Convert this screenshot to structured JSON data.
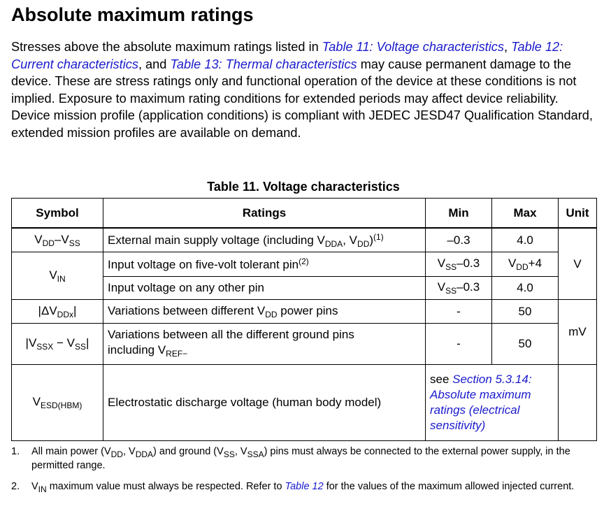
{
  "heading": "Absolute maximum ratings",
  "intro": {
    "t1": "Stresses above the absolute maximum ratings listed in ",
    "link1": "Table 11: Voltage characteristics",
    "t2": ", ",
    "link2": "Table 12: Current characteristics",
    "t3": ", and ",
    "link3": "Table 13: Thermal characteristics",
    "t4": " may cause permanent damage to the device. These are stress ratings only and functional operation of the device at these conditions is not implied. Exposure to maximum rating conditions for extended periods may affect device reliability. Device mission profile (application conditions) is compliant with JEDEC JESD47 Qualification Standard, extended mission profiles are available on demand."
  },
  "table": {
    "caption": "Table 11. Voltage characteristics",
    "headers": {
      "symbol": "Symbol",
      "ratings": "Ratings",
      "min": "Min",
      "max": "Max",
      "unit": "Unit"
    },
    "rows": [
      {
        "sym_a": "V",
        "sym_a_sub": "DD",
        "sym_sep": "–",
        "sym_b": "V",
        "sym_b_sub": "SS",
        "r1": "External main supply voltage (including V",
        "r1_sub": "DDA",
        "r2": ", V",
        "r2_sub": "DD",
        "r3": ")",
        "r3_sup": "(1)",
        "min": "–0.3",
        "max": "4.0"
      },
      {
        "sym": "V",
        "sym_sub": "IN",
        "r1": "Input voltage on five-volt tolerant pin",
        "r1_sup": "(2)",
        "min_a": "V",
        "min_a_sub": "SS",
        "min_b": "–0.3",
        "max_a": "V",
        "max_a_sub": "DD",
        "max_b": "+4"
      },
      {
        "r1": "Input voltage on any other pin",
        "min_a": "V",
        "min_a_sub": "SS",
        "min_b": "–0.3",
        "max": "4.0"
      },
      {
        "sym_a": "|ΔV",
        "sym_a_sub": "DDx",
        "sym_b": "|",
        "r1": "Variations between different V",
        "r1_sub": "DD",
        "r2": " power pins",
        "min": "-",
        "max": "50"
      },
      {
        "sym_a": "|V",
        "sym_a_sub": "SSX",
        "sym_mid": " − V",
        "sym_mid_sub": "SS",
        "sym_b": "|",
        "r1": "Variations between all the different ground pins",
        "r2": "including V",
        "r2_sub": "REF−",
        "min": "-",
        "max": "50"
      },
      {
        "sym": "V",
        "sym_sub": "ESD(HBM)",
        "r1": "Electrostatic discharge voltage (human body model)",
        "see": "see ",
        "see_link": "Section 5.3.14: Absolute maximum ratings (electrical sensitivity)"
      }
    ],
    "unit_v": "V",
    "unit_mv": "mV"
  },
  "notes": [
    {
      "num": "1.",
      "t1": "All main power (V",
      "s1": "DD",
      "t2": ", V",
      "s2": "DDA",
      "t3": ") and ground (V",
      "s3": "SS",
      "t4": ", V",
      "s4": "SSA",
      "t5": ") pins must always be connected to the external power supply, in the permitted range."
    },
    {
      "num": "2.",
      "t1": "V",
      "s1": "IN",
      "t2": " maximum value must always be respected. Refer to ",
      "link": "Table 12",
      "t3": " for the values of the maximum allowed injected current."
    }
  ]
}
